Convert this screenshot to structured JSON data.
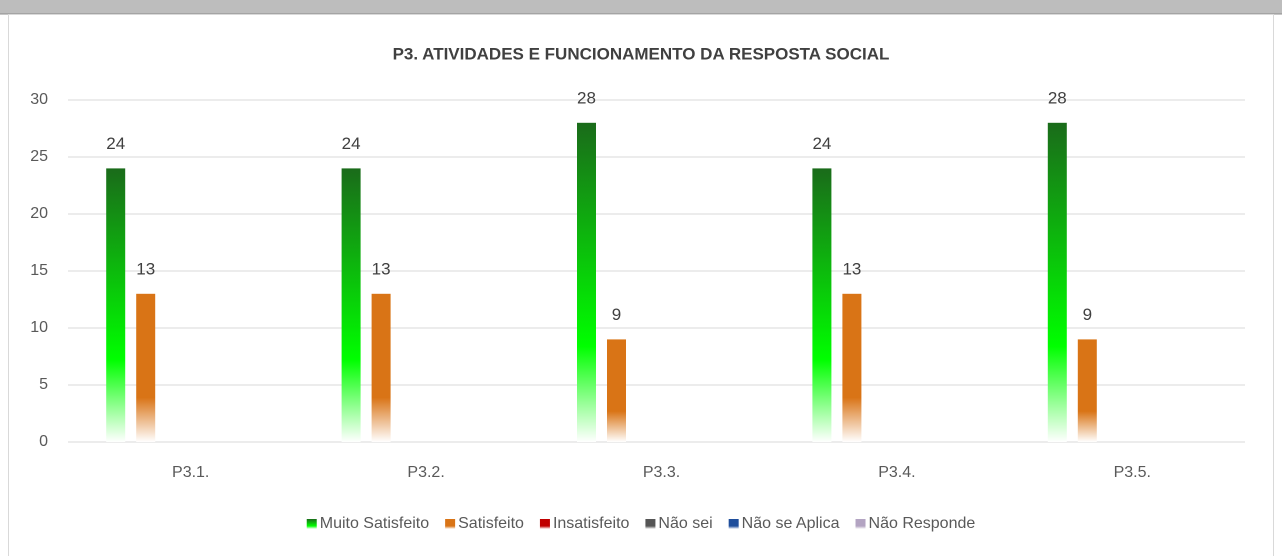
{
  "chart_data": {
    "type": "bar",
    "title": "P3. ATIVIDADES E FUNCIONAMENTO DA RESPOSTA SOCIAL",
    "categories": [
      "P3.1.",
      "P3.2.",
      "P3.3.",
      "P3.4.",
      "P3.5."
    ],
    "series": [
      {
        "name": "Muito Satisfeito",
        "color": "#1a6b1a",
        "values": [
          24,
          24,
          28,
          24,
          28
        ]
      },
      {
        "name": "Satisfeito",
        "color": "#d97416",
        "values": [
          13,
          13,
          9,
          13,
          9
        ]
      },
      {
        "name": "Insatisfeito",
        "color": "#c00000",
        "values": [
          0,
          0,
          0,
          0,
          0
        ]
      },
      {
        "name": "Não sei",
        "color": "#555555",
        "values": [
          0,
          0,
          0,
          0,
          0
        ]
      },
      {
        "name": "Não se Aplica",
        "color": "#1f4e9c",
        "values": [
          0,
          0,
          0,
          0,
          0
        ]
      },
      {
        "name": "Não Responde",
        "color": "#b3a4c2",
        "values": [
          0,
          0,
          0,
          0,
          0
        ]
      }
    ],
    "ylim": [
      0,
      30
    ],
    "yticks": [
      0,
      5,
      10,
      15,
      20,
      25,
      30
    ],
    "grid": true,
    "legend": "bottom"
  }
}
